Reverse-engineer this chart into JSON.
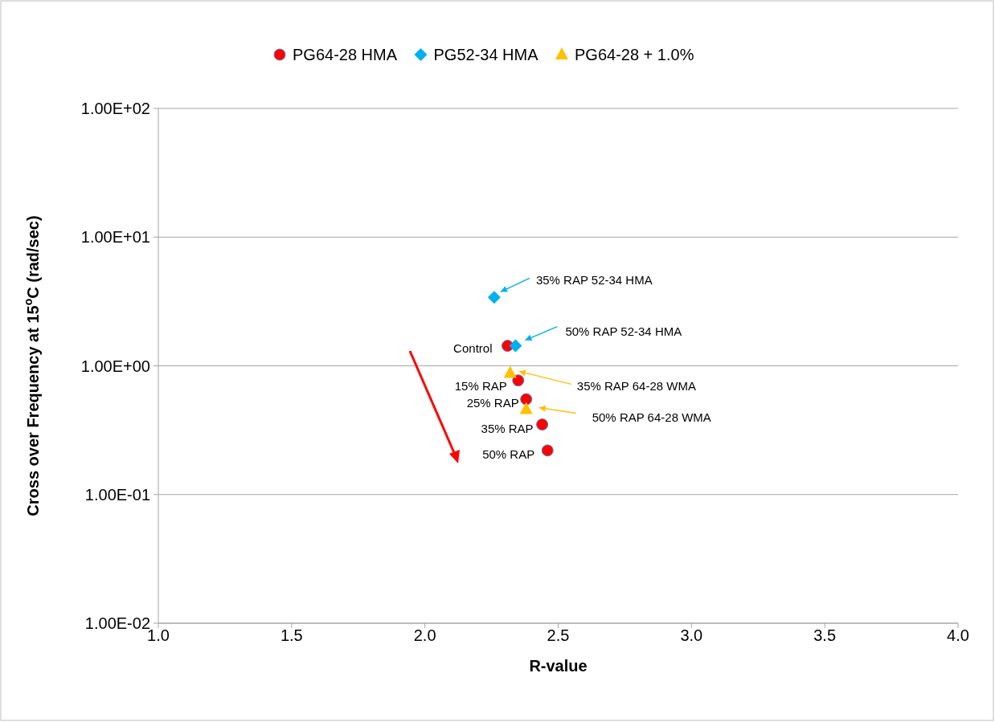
{
  "chart_data": {
    "type": "scatter",
    "xlabel": "R-value",
    "ylabel": "Cross over Frequency at 15$^{o}$C (rad/sec)",
    "xlim": [
      1,
      4
    ],
    "xticks": [
      {
        "value": 1,
        "label": "1.0"
      },
      {
        "value": 1.5,
        "label": "1.5"
      },
      {
        "value": 2,
        "label": "2.0"
      },
      {
        "value": 2.5,
        "label": "2.5"
      },
      {
        "value": 3,
        "label": "3.0"
      },
      {
        "value": 3.5,
        "label": "3.5"
      },
      {
        "value": 4,
        "label": "4.0"
      }
    ],
    "ylim": [
      0.01,
      100
    ],
    "yticks": [
      {
        "value": 0.01,
        "label": "1.00E-02"
      },
      {
        "value": 0.1,
        "label": "1.00E-01"
      },
      {
        "value": 1,
        "label": "1.00E+00"
      },
      {
        "value": 10,
        "label": "1.00E+01"
      },
      {
        "value": 100,
        "label": "1.00E+02"
      }
    ],
    "log": "y",
    "grid": "y",
    "legend": "top",
    "series": [
      {
        "name": "PG64-28 HMA",
        "color": "#ff0000",
        "marker": "circle",
        "x": [
          2.31,
          2.35,
          2.38,
          2.44,
          2.46
        ],
        "values": [
          1.43,
          0.77,
          0.55,
          0.35,
          0.22
        ]
      },
      {
        "name": "PG52-34 HMA",
        "color": "#00b0f0",
        "marker": "diamond",
        "x": [
          2.26,
          2.34
        ],
        "values": [
          3.4,
          1.43
        ]
      },
      {
        "name": "PG64-28 + 1.0%",
        "color": "#ffc000",
        "marker": "triangle",
        "x": [
          2.32,
          2.38
        ],
        "values": [
          0.88,
          0.46
        ]
      }
    ],
    "annotations": [
      {
        "text": "Control",
        "x": 2.31,
        "y": 1.43
      },
      {
        "text": "15% RAP",
        "x": 2.35,
        "y": 0.77
      },
      {
        "text": "25% RAP",
        "x": 2.38,
        "y": 0.55
      },
      {
        "text": "35% RAP",
        "x": 2.44,
        "y": 0.35
      },
      {
        "text": "50% RAP",
        "x": 2.46,
        "y": 0.22
      },
      "35% RAP 52-34 HMA",
      "50% RAP 52-34 HMA",
      "35% RAP 64-28 WMA",
      "50% RAP 64-28 WMA"
    ]
  }
}
